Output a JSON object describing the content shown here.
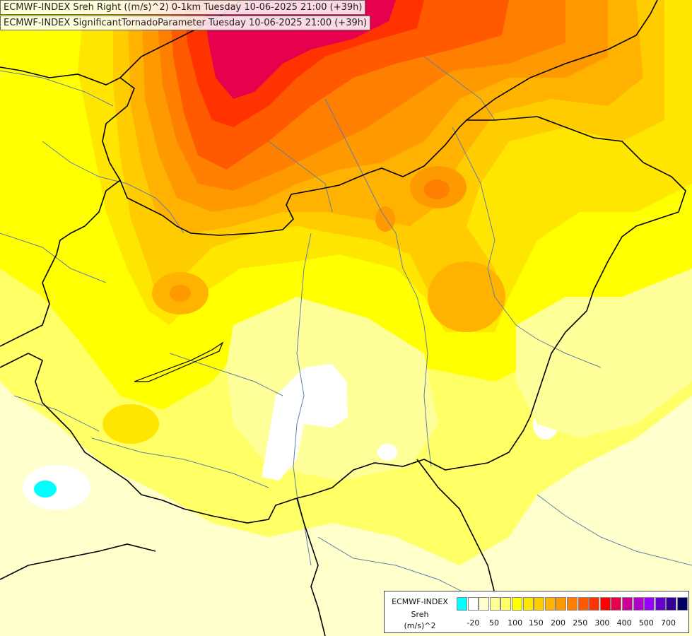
{
  "titles": {
    "line1": "ECMWF-INDEX Sreh Right ((m/s)^2) 0-1km Tuesday 10-06-2025 21:00 (+39h)",
    "line2": "ECMWF-INDEX SignificantTornadoParameter Tuesday 10-06-2025 21:00 (+39h)"
  },
  "legend": {
    "source": "ECMWF-INDEX",
    "variable": "Sreh",
    "unit": "(m/s)^2",
    "colors": [
      "#00ffff",
      "#ffffff",
      "#ffffcc",
      "#ffff99",
      "#ffff66",
      "#ffff00",
      "#ffe600",
      "#ffcc00",
      "#ffb300",
      "#ff9900",
      "#ff7f00",
      "#ff5a00",
      "#ff3300",
      "#ff0000",
      "#e6004d",
      "#cc0099",
      "#b300cc",
      "#9900ff",
      "#6600cc",
      "#330099",
      "#000066"
    ],
    "ticks": [
      "-20",
      "50",
      "100",
      "150",
      "200",
      "250",
      "300",
      "400",
      "500",
      "700"
    ]
  }
}
